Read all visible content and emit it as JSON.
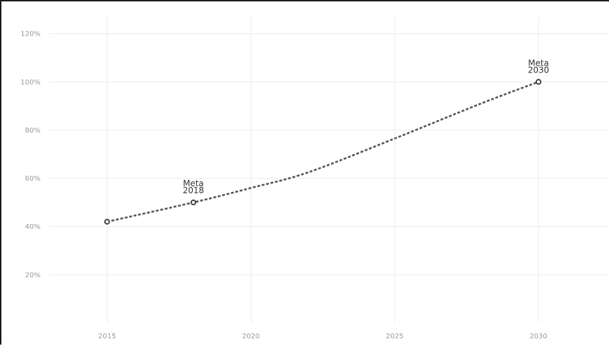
{
  "chart_data": {
    "type": "line",
    "title": "",
    "xlabel": "",
    "ylabel": "",
    "x": [
      2015,
      2018,
      2030
    ],
    "values": [
      42,
      50,
      100
    ],
    "curve": [
      {
        "x": 2015,
        "y": 42
      },
      {
        "x": 2018,
        "y": 50
      },
      {
        "x": 2020,
        "y": 56
      },
      {
        "x": 2022,
        "y": 62.5
      },
      {
        "x": 2025,
        "y": 76.5
      },
      {
        "x": 2028,
        "y": 91
      },
      {
        "x": 2030,
        "y": 100
      }
    ],
    "xlim": [
      2013,
      2032.5
    ],
    "ylim": [
      0,
      127
    ],
    "x_ticks": [
      2015,
      2020,
      2025,
      2030
    ],
    "x_tick_labels": [
      "2015",
      "2020",
      "2025",
      "2030"
    ],
    "y_ticks": [
      20,
      40,
      60,
      80,
      100,
      120
    ],
    "y_tick_labels": [
      "20%",
      "40%",
      "60%",
      "80%",
      "100%",
      "120%"
    ],
    "annotations": [
      {
        "x": 2018,
        "y": 50,
        "lines": [
          "Meta",
          "2018"
        ]
      },
      {
        "x": 2030,
        "y": 100,
        "lines": [
          "Meta",
          "2030"
        ]
      }
    ],
    "line_style": "dashed",
    "line_color": "#555555",
    "grid": true,
    "grid_color": "#ebebeb",
    "legend": "none"
  }
}
